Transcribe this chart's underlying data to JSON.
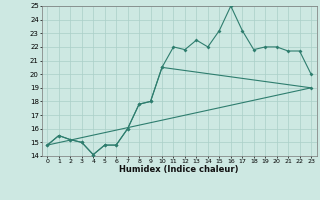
{
  "xlabel": "Humidex (Indice chaleur)",
  "line1_x": [
    0,
    1,
    2,
    3,
    4,
    5,
    6,
    7,
    8,
    9,
    10,
    11,
    12,
    13,
    14,
    15,
    16,
    17,
    18,
    19,
    20,
    21,
    22,
    23
  ],
  "line1_y": [
    14.8,
    15.5,
    15.2,
    15.0,
    14.1,
    14.8,
    14.8,
    16.0,
    17.8,
    18.0,
    20.5,
    22.0,
    21.8,
    22.5,
    22.0,
    23.2,
    25.0,
    23.2,
    21.8,
    22.0,
    22.0,
    21.7,
    21.7,
    20.0
  ],
  "line2_x": [
    0,
    1,
    2,
    3,
    4,
    5,
    6,
    7,
    8,
    9,
    10,
    23
  ],
  "line2_y": [
    14.8,
    15.5,
    15.2,
    15.0,
    14.1,
    14.8,
    14.8,
    16.0,
    17.8,
    18.0,
    20.5,
    19.0
  ],
  "line3_x": [
    0,
    23
  ],
  "line3_y": [
    14.8,
    19.0
  ],
  "line_color": "#2e7d6e",
  "bg_color": "#cde8e2",
  "grid_color": "#aacfc8",
  "ylim": [
    14,
    25
  ],
  "xlim": [
    -0.5,
    23.5
  ],
  "yticks": [
    14,
    15,
    16,
    17,
    18,
    19,
    20,
    21,
    22,
    23,
    24,
    25
  ],
  "xticks": [
    0,
    1,
    2,
    3,
    4,
    5,
    6,
    7,
    8,
    9,
    10,
    11,
    12,
    13,
    14,
    15,
    16,
    17,
    18,
    19,
    20,
    21,
    22,
    23
  ]
}
